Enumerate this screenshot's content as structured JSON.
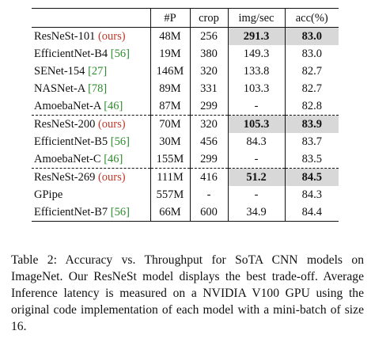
{
  "table": {
    "headers": [
      "",
      "#P",
      "crop",
      "img/sec",
      "acc(%)"
    ],
    "rows": [
      {
        "name": "ResNeSt-101",
        "tag": "(ours)",
        "ref": "",
        "params": "48M",
        "crop": "256",
        "imgsec": "291.3",
        "acc": "83.0",
        "best": true
      },
      {
        "name": "EfficientNet-B4",
        "tag": "",
        "ref": "[56]",
        "params": "19M",
        "crop": "380",
        "imgsec": "149.3",
        "acc": "83.0",
        "best": false
      },
      {
        "name": "SENet-154",
        "tag": "",
        "ref": "[27]",
        "params": "146M",
        "crop": "320",
        "imgsec": "133.8",
        "acc": "82.7",
        "best": false
      },
      {
        "name": "NASNet-A",
        "tag": "",
        "ref": "[78]",
        "params": "89M",
        "crop": "331",
        "imgsec": "103.3",
        "acc": "82.7",
        "best": false
      },
      {
        "name": "AmoebaNet-A",
        "tag": "",
        "ref": "[46]",
        "params": "87M",
        "crop": "299",
        "imgsec": "-",
        "acc": "82.8",
        "best": false
      },
      {
        "name": "ResNeSt-200",
        "tag": "(ours)",
        "ref": "",
        "params": "70M",
        "crop": "320",
        "imgsec": "105.3",
        "acc": "83.9",
        "best": true
      },
      {
        "name": "EfficientNet-B5",
        "tag": "",
        "ref": "[56]",
        "params": "30M",
        "crop": "456",
        "imgsec": "84.3",
        "acc": "83.7",
        "best": false
      },
      {
        "name": "AmoebaNet-C",
        "tag": "",
        "ref": "[46]",
        "params": "155M",
        "crop": "299",
        "imgsec": "-",
        "acc": "83.5",
        "best": false
      },
      {
        "name": "ResNeSt-269",
        "tag": "(ours)",
        "ref": "",
        "params": "111M",
        "crop": "416",
        "imgsec": "51.2",
        "acc": "84.5",
        "best": true
      },
      {
        "name": "GPipe",
        "tag": "",
        "ref": "",
        "params": "557M",
        "crop": "-",
        "imgsec": "-",
        "acc": "84.3",
        "best": false
      },
      {
        "name": "EfficientNet-B7",
        "tag": "",
        "ref": "[56]",
        "params": "66M",
        "crop": "600",
        "imgsec": "34.9",
        "acc": "84.4",
        "best": false
      }
    ],
    "group_starts": [
      5,
      8
    ],
    "highlight_color": "#d8d8d8",
    "ref_color": "#2e8b2e",
    "ours_color": "#c0392b"
  },
  "caption": "Table 2: Accuracy vs. Throughput for SoTA CNN models on ImageNet. Our ResNeSt model displays the best trade-off. Average Inference latency is measured on a NVIDIA V100 GPU using the original code implementation of each model with a mini-batch of size 16."
}
